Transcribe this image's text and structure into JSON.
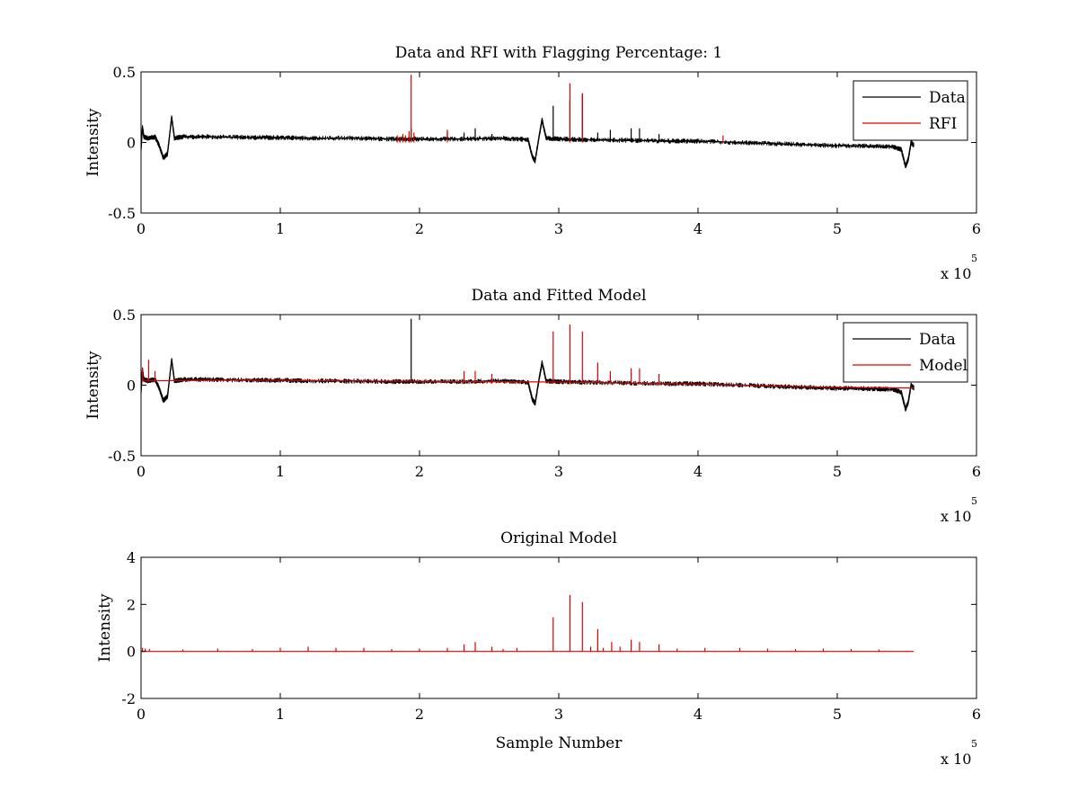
{
  "figure": {
    "background": "#ffffff",
    "colors": {
      "data": "#000000",
      "model": "#e00000",
      "axes": "#000000"
    }
  },
  "chart_data": [
    {
      "type": "line",
      "title": "Data and RFI with Flagging Percentage: 1",
      "xlabel": "",
      "ylabel": "Intensity",
      "xlim": [
        0,
        6
      ],
      "ylim": [
        -0.5,
        0.5
      ],
      "xticks": [
        "0",
        "1",
        "2",
        "3",
        "4",
        "5",
        "6"
      ],
      "yticks": [
        "-0.5",
        "0",
        "0.5"
      ],
      "x_multiplier": {
        "base": "x 10",
        "exponent": "5"
      },
      "legend": {
        "position": "top-right",
        "entries": [
          {
            "label": "Data",
            "color": "#000000"
          },
          {
            "label": "RFI",
            "color": "#e00000"
          }
        ]
      },
      "series": [
        {
          "name": "Data",
          "color": "#000000",
          "x": [
            0,
            0.01,
            0.02,
            0.05,
            0.1,
            0.13,
            0.16,
            0.19,
            0.22,
            0.24,
            0.3,
            0.5,
            0.8,
            1.0,
            1.2,
            1.5,
            1.8,
            2.0,
            2.3,
            2.6,
            2.78,
            2.81,
            2.83,
            2.86,
            2.88,
            2.91,
            3.0,
            3.2,
            3.5,
            3.8,
            4.0,
            4.3,
            4.6,
            4.9,
            5.2,
            5.4,
            5.46,
            5.49,
            5.51,
            5.53,
            5.55
          ],
          "y": [
            -0.05,
            0.11,
            0.04,
            0.03,
            0.04,
            -0.02,
            -0.11,
            -0.08,
            0.18,
            0.03,
            0.04,
            0.04,
            0.035,
            0.035,
            0.03,
            0.03,
            0.025,
            0.025,
            0.025,
            0.03,
            0.02,
            -0.1,
            -0.13,
            0.05,
            0.16,
            0.03,
            0.025,
            0.02,
            0.015,
            0.01,
            0.01,
            0.0,
            -0.01,
            -0.02,
            -0.025,
            -0.03,
            -0.05,
            -0.17,
            -0.12,
            0.0,
            -0.02
          ],
          "spikes": [
            {
              "x": 1.94,
              "y": 0.1
            },
            {
              "x": 2.2,
              "y": 0.08
            },
            {
              "x": 2.32,
              "y": 0.07
            },
            {
              "x": 2.4,
              "y": 0.1
            },
            {
              "x": 2.52,
              "y": 0.06
            },
            {
              "x": 2.96,
              "y": 0.26
            },
            {
              "x": 3.08,
              "y": 0.3
            },
            {
              "x": 3.17,
              "y": 0.34
            },
            {
              "x": 3.28,
              "y": 0.07
            },
            {
              "x": 3.37,
              "y": 0.09
            },
            {
              "x": 3.52,
              "y": 0.1
            },
            {
              "x": 3.58,
              "y": 0.1
            },
            {
              "x": 3.72,
              "y": 0.06
            }
          ]
        },
        {
          "name": "RFI",
          "color": "#e00000",
          "x": [],
          "y": [],
          "spikes": [
            {
              "x": 1.84,
              "y": 0.05
            },
            {
              "x": 1.86,
              "y": 0.04
            },
            {
              "x": 1.88,
              "y": 0.06
            },
            {
              "x": 1.9,
              "y": 0.05
            },
            {
              "x": 1.925,
              "y": 0.08
            },
            {
              "x": 1.94,
              "y": 0.48
            },
            {
              "x": 1.96,
              "y": 0.07
            },
            {
              "x": 2.2,
              "y": 0.09
            },
            {
              "x": 3.08,
              "y": 0.42
            },
            {
              "x": 3.17,
              "y": 0.35
            },
            {
              "x": 4.18,
              "y": 0.05
            }
          ]
        }
      ]
    },
    {
      "type": "line",
      "title": "Data and Fitted Model",
      "xlabel": "",
      "ylabel": "Intensity",
      "xlim": [
        0,
        6
      ],
      "ylim": [
        -0.5,
        0.5
      ],
      "xticks": [
        "0",
        "1",
        "2",
        "3",
        "4",
        "5",
        "6"
      ],
      "yticks": [
        "-0.5",
        "0",
        "0.5"
      ],
      "x_multiplier": {
        "base": "x 10",
        "exponent": "5"
      },
      "legend": {
        "position": "top-right",
        "entries": [
          {
            "label": "Data",
            "color": "#000000"
          },
          {
            "label": "Model",
            "color": "#e00000"
          }
        ]
      },
      "series": [
        {
          "name": "Data",
          "color": "#000000",
          "x": [
            0,
            0.01,
            0.02,
            0.05,
            0.1,
            0.13,
            0.16,
            0.19,
            0.22,
            0.24,
            0.3,
            0.5,
            0.8,
            1.0,
            1.2,
            1.5,
            1.8,
            2.0,
            2.3,
            2.6,
            2.78,
            2.81,
            2.83,
            2.86,
            2.88,
            2.91,
            3.0,
            3.2,
            3.5,
            3.8,
            4.0,
            4.3,
            4.6,
            4.9,
            5.2,
            5.4,
            5.46,
            5.49,
            5.51,
            5.53,
            5.55
          ],
          "y": [
            -0.05,
            0.11,
            0.04,
            0.03,
            0.04,
            -0.02,
            -0.11,
            -0.08,
            0.18,
            0.03,
            0.04,
            0.04,
            0.035,
            0.035,
            0.03,
            0.03,
            0.025,
            0.025,
            0.025,
            0.03,
            0.02,
            -0.1,
            -0.13,
            0.05,
            0.16,
            0.03,
            0.025,
            0.02,
            0.015,
            0.01,
            0.01,
            0.0,
            -0.01,
            -0.02,
            -0.025,
            -0.03,
            -0.05,
            -0.17,
            -0.12,
            0.0,
            -0.02
          ],
          "spikes": [
            {
              "x": 1.94,
              "y": 0.47
            }
          ]
        },
        {
          "name": "Model",
          "color": "#e00000",
          "x": [
            0,
            0.5,
            1.0,
            1.5,
            2.0,
            2.5,
            3.0,
            3.5,
            4.0,
            4.5,
            5.0,
            5.5,
            5.55
          ],
          "y": [
            0.03,
            0.035,
            0.035,
            0.03,
            0.028,
            0.025,
            0.022,
            0.015,
            0.008,
            -0.005,
            -0.015,
            -0.02,
            -0.02
          ],
          "spikes": [
            {
              "x": 0.01,
              "y": 0.12
            },
            {
              "x": 0.055,
              "y": 0.18
            },
            {
              "x": 0.1,
              "y": 0.1
            },
            {
              "x": 2.32,
              "y": 0.1
            },
            {
              "x": 2.4,
              "y": 0.1
            },
            {
              "x": 2.52,
              "y": 0.08
            },
            {
              "x": 2.96,
              "y": 0.38
            },
            {
              "x": 3.08,
              "y": 0.43
            },
            {
              "x": 3.17,
              "y": 0.38
            },
            {
              "x": 3.28,
              "y": 0.16
            },
            {
              "x": 3.37,
              "y": 0.1
            },
            {
              "x": 3.52,
              "y": 0.12
            },
            {
              "x": 3.58,
              "y": 0.12
            },
            {
              "x": 3.72,
              "y": 0.08
            }
          ]
        }
      ]
    },
    {
      "type": "line",
      "title": "Original Model",
      "xlabel": "Sample Number",
      "ylabel": "Intensity",
      "xlim": [
        0,
        6
      ],
      "ylim": [
        -2,
        4
      ],
      "xticks": [
        "0",
        "1",
        "2",
        "3",
        "4",
        "5",
        "6"
      ],
      "yticks": [
        "-2",
        "0",
        "2",
        "4"
      ],
      "x_multiplier": {
        "base": "x 10",
        "exponent": "5"
      },
      "legend": null,
      "series": [
        {
          "name": "Model",
          "color": "#e00000",
          "x": [
            0,
            5.55
          ],
          "y": [
            0,
            0
          ],
          "spikes": [
            {
              "x": 0.01,
              "y": 0.15
            },
            {
              "x": 0.03,
              "y": 0.12
            },
            {
              "x": 0.06,
              "y": 0.1
            },
            {
              "x": 0.3,
              "y": 0.08
            },
            {
              "x": 0.55,
              "y": 0.12
            },
            {
              "x": 0.8,
              "y": 0.1
            },
            {
              "x": 1.0,
              "y": 0.15
            },
            {
              "x": 1.2,
              "y": 0.2
            },
            {
              "x": 1.4,
              "y": 0.15
            },
            {
              "x": 1.6,
              "y": 0.15
            },
            {
              "x": 1.8,
              "y": 0.1
            },
            {
              "x": 2.0,
              "y": 0.12
            },
            {
              "x": 2.2,
              "y": 0.15
            },
            {
              "x": 2.32,
              "y": 0.3
            },
            {
              "x": 2.4,
              "y": 0.4
            },
            {
              "x": 2.52,
              "y": 0.2
            },
            {
              "x": 2.6,
              "y": 0.1
            },
            {
              "x": 2.7,
              "y": 0.15
            },
            {
              "x": 2.96,
              "y": 1.45
            },
            {
              "x": 3.08,
              "y": 2.4
            },
            {
              "x": 3.17,
              "y": 2.1
            },
            {
              "x": 3.23,
              "y": 0.2
            },
            {
              "x": 3.28,
              "y": 0.95
            },
            {
              "x": 3.32,
              "y": 0.15
            },
            {
              "x": 3.38,
              "y": 0.4
            },
            {
              "x": 3.44,
              "y": 0.2
            },
            {
              "x": 3.52,
              "y": 0.5
            },
            {
              "x": 3.58,
              "y": 0.4
            },
            {
              "x": 3.72,
              "y": 0.3
            },
            {
              "x": 3.85,
              "y": 0.12
            },
            {
              "x": 4.05,
              "y": 0.15
            },
            {
              "x": 4.3,
              "y": 0.15
            },
            {
              "x": 4.5,
              "y": 0.12
            },
            {
              "x": 4.7,
              "y": 0.1
            },
            {
              "x": 4.9,
              "y": 0.12
            },
            {
              "x": 5.1,
              "y": 0.1
            },
            {
              "x": 5.3,
              "y": 0.08
            }
          ]
        }
      ]
    }
  ]
}
